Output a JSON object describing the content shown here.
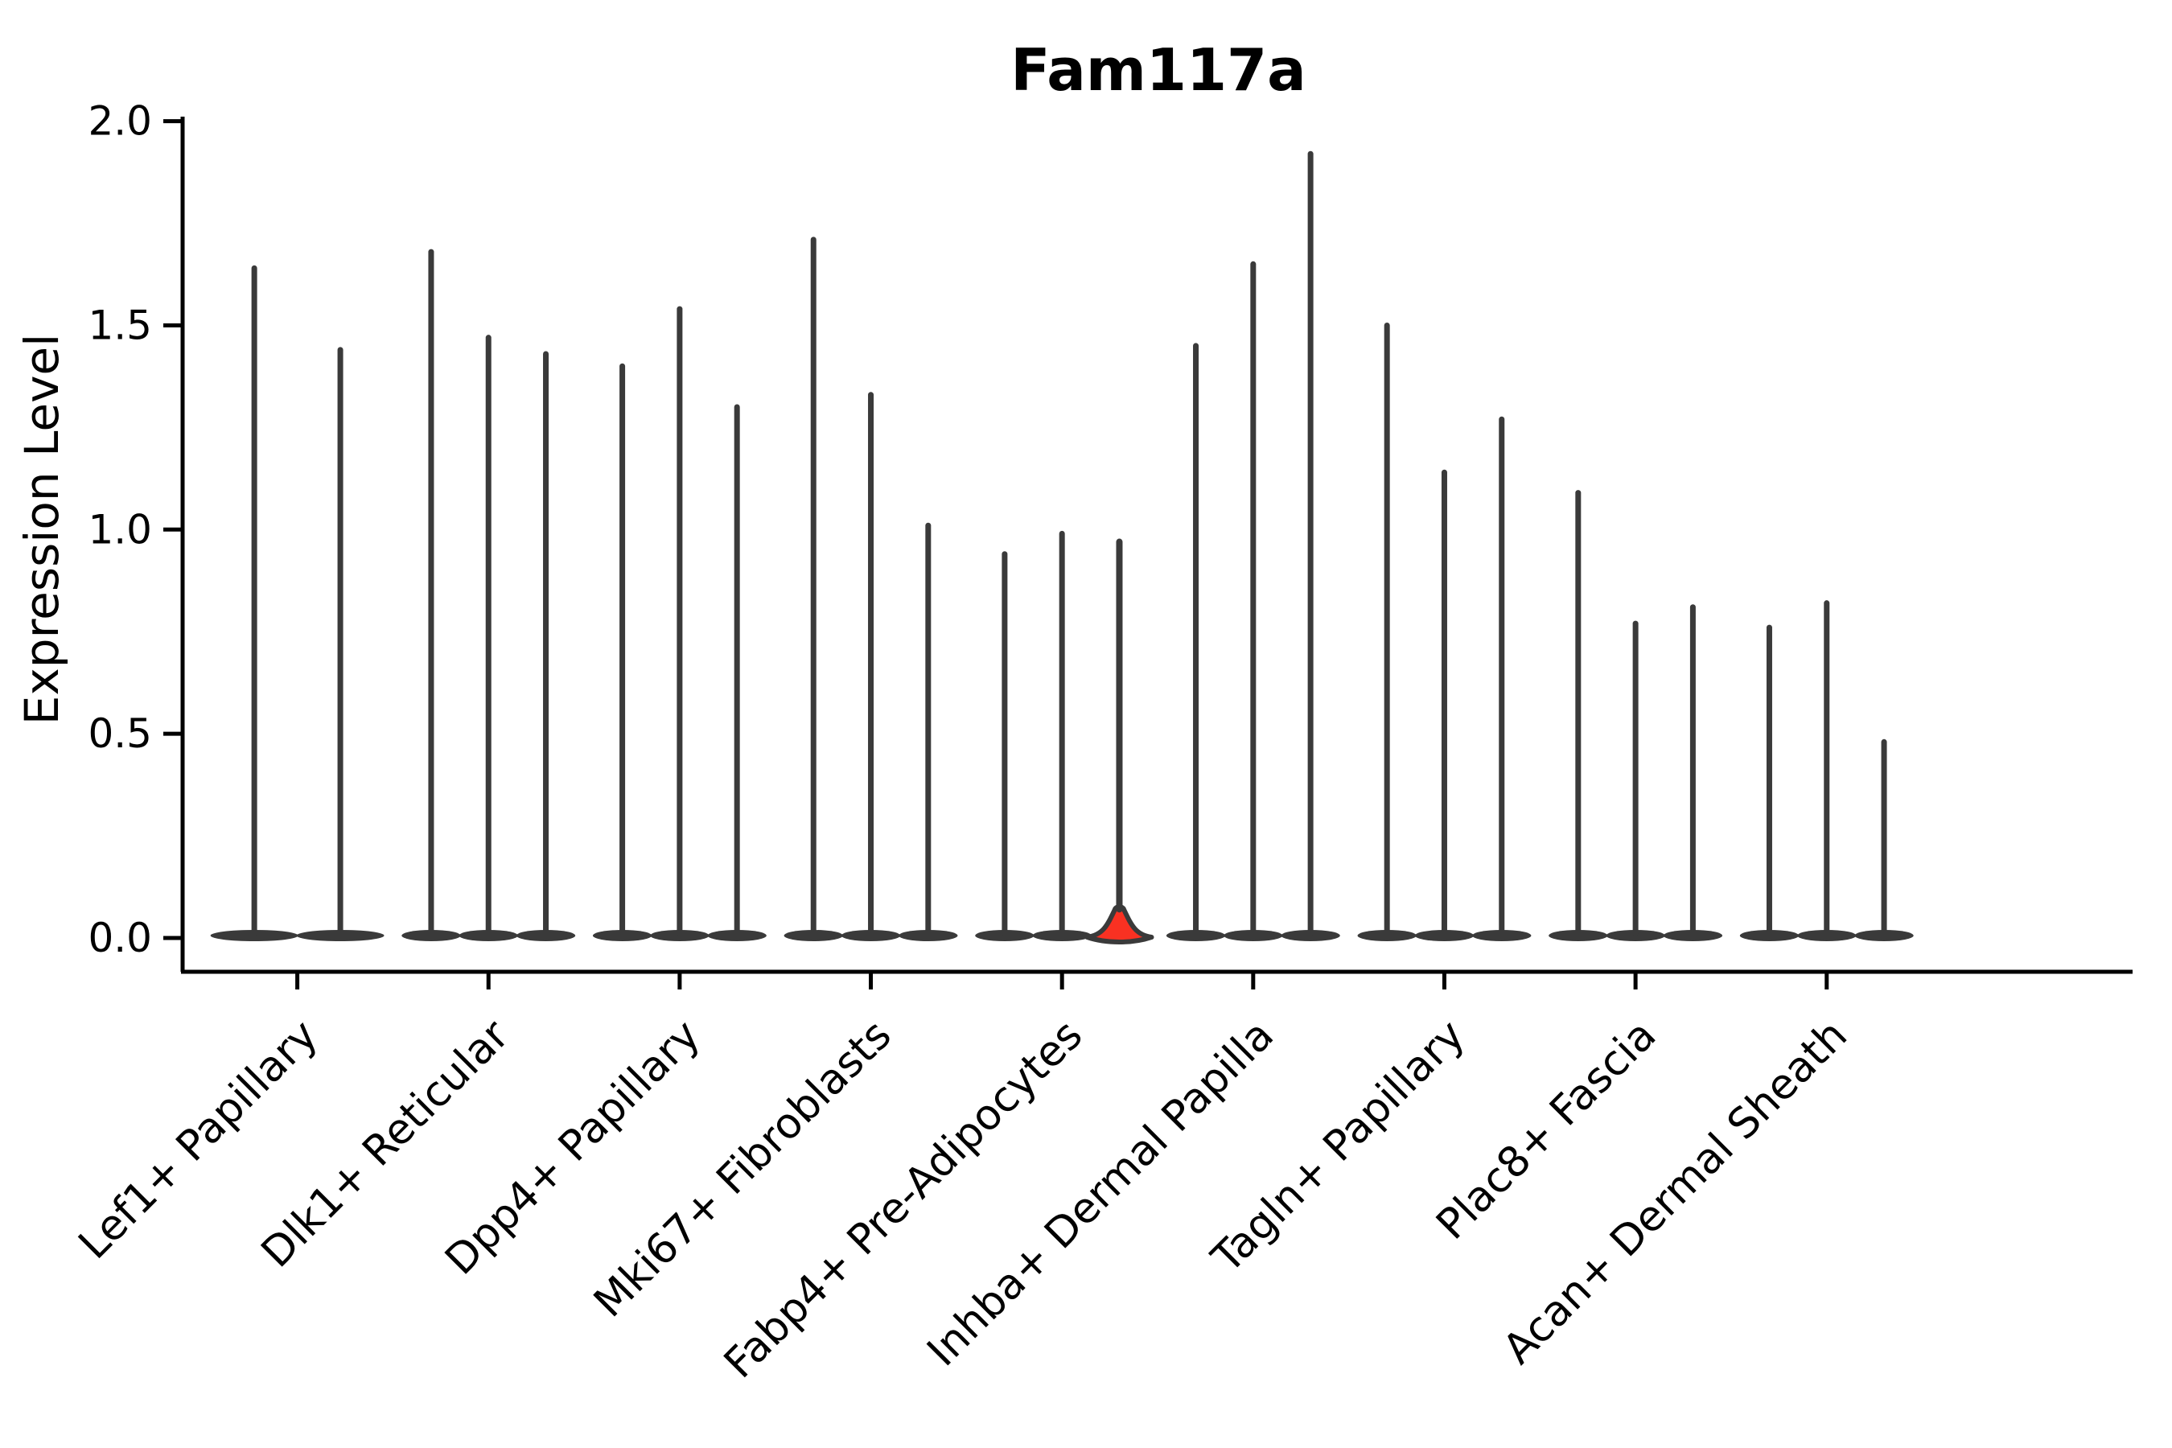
{
  "figure": {
    "title": "Fam117a",
    "ylabel": "Expression Level"
  },
  "colors": {
    "violin_outline": "#3a3a3a",
    "highlight_fill": "#f93122",
    "axis": "#000000",
    "background": "#ffffff"
  },
  "chart_data": {
    "type": "violin",
    "title": "Fam117a",
    "xlabel": "",
    "ylabel": "Expression Level",
    "ylim": [
      0,
      2
    ],
    "yticks": [
      0.0,
      0.5,
      1.0,
      1.5,
      2.0
    ],
    "ytick_labels": [
      "0.0",
      "0.5",
      "1.0",
      "1.5",
      "2.0"
    ],
    "grid": false,
    "legend": "none",
    "categories": [
      "Lef1+ Papillary",
      "Dlk1+ Reticular",
      "Dpp4+ Papillary",
      "Mki67+ Fibroblasts",
      "Fabp4+ Pre-Adipocytes",
      "Inhba+ Dermal Papilla",
      "Tagln+ Papillary",
      "Plac8+ Fascia",
      "Acan+ Dermal Sheath"
    ],
    "series": [
      {
        "category": "Lef1+ Papillary",
        "violin_maxima": [
          1.64,
          1.44
        ]
      },
      {
        "category": "Dlk1+ Reticular",
        "violin_maxima": [
          1.68,
          1.47,
          1.43
        ]
      },
      {
        "category": "Dpp4+ Papillary",
        "violin_maxima": [
          1.4,
          1.54,
          1.3
        ]
      },
      {
        "category": "Mki67+ Fibroblasts",
        "violin_maxima": [
          1.71,
          1.33,
          1.01
        ]
      },
      {
        "category": "Fabp4+ Pre-Adipocytes",
        "violin_maxima": [
          0.94,
          0.99,
          0.97
        ]
      },
      {
        "category": "Inhba+ Dermal Papilla",
        "violin_maxima": [
          1.45,
          1.65,
          1.92
        ]
      },
      {
        "category": "Tagln+ Papillary",
        "violin_maxima": [
          1.5,
          1.14,
          1.27
        ]
      },
      {
        "category": "Plac8+ Fascia",
        "violin_maxima": [
          1.09,
          0.77,
          0.81
        ]
      },
      {
        "category": "Acan+ Dermal Sheath",
        "violin_maxima": [
          0.76,
          0.82,
          0.48
        ]
      }
    ],
    "highlight": {
      "category": "Fabp4+ Pre-Adipocytes",
      "group_index": 4,
      "violin_index": 2,
      "fill": "#f93122",
      "visible_density_height": 0.065
    }
  }
}
